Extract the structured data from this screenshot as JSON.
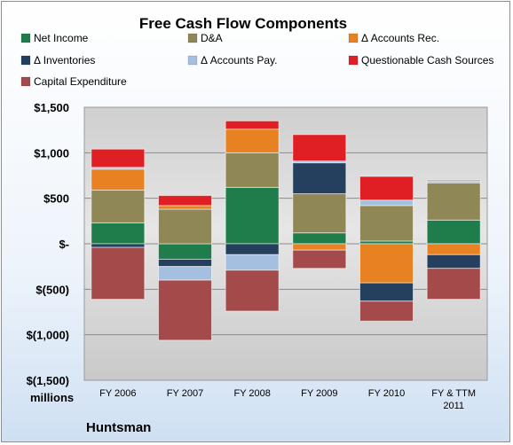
{
  "chart_data": {
    "type": "bar",
    "stacked": true,
    "title": "Free Cash Flow Components",
    "ylabel": "",
    "xlabel": "",
    "unit_label": "millions",
    "company_label": "Huntsman",
    "categories": [
      "FY 2006",
      "FY 2007",
      "FY 2008",
      "FY 2009",
      "FY 2010",
      "FY & TTM 2011"
    ],
    "ylim": [
      -1500,
      1500
    ],
    "yticks": [
      {
        "value": 1500,
        "label": "$1,500"
      },
      {
        "value": 1000,
        "label": "$1,000"
      },
      {
        "value": 500,
        "label": "$500"
      },
      {
        "value": 0,
        "label": "$-"
      },
      {
        "value": -500,
        "label": "$(500)"
      },
      {
        "value": -1000,
        "label": "$(1,000)"
      },
      {
        "value": -1500,
        "label": "$(1,500)"
      }
    ],
    "grid": true,
    "legend_position": "top",
    "series": [
      {
        "name": "Net Income",
        "color": "#1e7d4b",
        "values": [
          230,
          -170,
          620,
          120,
          30,
          260
        ]
      },
      {
        "name": "D&A",
        "color": "#8f8755",
        "values": [
          360,
          380,
          380,
          430,
          390,
          410
        ]
      },
      {
        "name": "Δ Accounts Rec.",
        "color": "#e88121",
        "values": [
          230,
          40,
          260,
          -70,
          -430,
          -120
        ]
      },
      {
        "name": "Δ Inventories",
        "color": "#24405e",
        "values": [
          -40,
          -80,
          -120,
          340,
          -200,
          -150
        ]
      },
      {
        "name": "Δ Accounts Pay.",
        "color": "#a5bfe0",
        "values": [
          20,
          -150,
          -170,
          20,
          60,
          20
        ]
      },
      {
        "name": "Questionable Cash Sources",
        "color": "#e01f25",
        "values": [
          200,
          110,
          90,
          290,
          260,
          10
        ]
      },
      {
        "name": "Capital Expenditure",
        "color": "#a44a4a",
        "values": [
          -570,
          -660,
          -450,
          -200,
          -220,
          -340
        ]
      }
    ]
  }
}
